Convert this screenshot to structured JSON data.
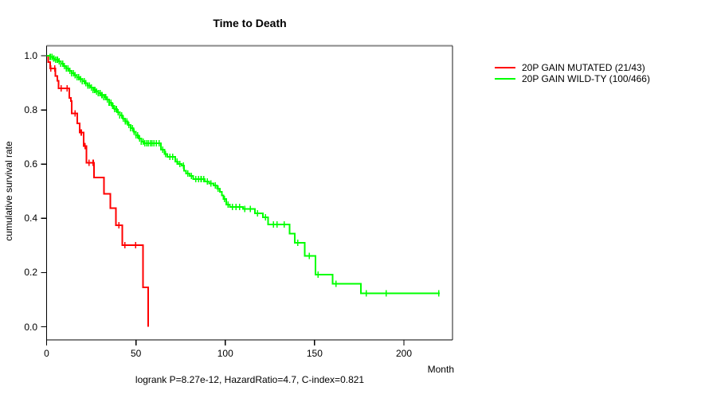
{
  "chart_data": {
    "type": "line",
    "subtype": "kaplan_meier_step",
    "title": "Time to Death",
    "xlabel": "Month",
    "ylabel": "cumulative survival rate",
    "annotation": "logrank P=8.27e-12, HazardRatio=4.7, C-index=0.821",
    "xlim": [
      0,
      220
    ],
    "ylim": [
      0.0,
      1.0
    ],
    "x_ticks": [
      0,
      50,
      100,
      150,
      200
    ],
    "x_tick_labels": [
      "0",
      "50",
      "100",
      "150",
      "200"
    ],
    "y_ticks": [
      0.0,
      0.2,
      0.4,
      0.6,
      0.8,
      1.0
    ],
    "y_tick_labels": [
      "0.0",
      "0.2",
      "0.4",
      "0.6",
      "0.8",
      "1.0"
    ],
    "grid": false,
    "legend_position": "right-outside",
    "series": [
      {
        "id": "mutated",
        "name": "20P GAIN MUTATED (21/43)",
        "color": "#ff0000",
        "start": [
          0,
          1.0
        ],
        "end_t": 56.8,
        "steps": [
          [
            1,
            0.977
          ],
          [
            2,
            0.953
          ],
          [
            5,
            0.925
          ],
          [
            6,
            0.907
          ],
          [
            6.7,
            0.879
          ],
          [
            12.7,
            0.845
          ],
          [
            13.5,
            0.833
          ],
          [
            14.1,
            0.787
          ],
          [
            17.1,
            0.75
          ],
          [
            18.6,
            0.717
          ],
          [
            20.8,
            0.667
          ],
          [
            22.2,
            0.605
          ],
          [
            26.6,
            0.55
          ],
          [
            32,
            0.49
          ],
          [
            35.6,
            0.437
          ],
          [
            38.8,
            0.374
          ],
          [
            42.3,
            0.301
          ],
          [
            53.9,
            0.145
          ],
          [
            56.8,
            0.0
          ]
        ],
        "censor_times": [
          2.3,
          4.5,
          8.2,
          11.5,
          16,
          19.4,
          21.6,
          23.8,
          26.1,
          40.5,
          43.8,
          49.8
        ]
      },
      {
        "id": "wildtype",
        "name": "20P GAIN WILD-TY (100/466)",
        "color": "#00ff00",
        "start": [
          0,
          1.0
        ],
        "end_t": 220,
        "steps": [
          [
            2,
            0.995
          ],
          [
            3.5,
            0.99
          ],
          [
            5,
            0.985
          ],
          [
            6.5,
            0.979
          ],
          [
            8,
            0.971
          ],
          [
            9.5,
            0.962
          ],
          [
            11,
            0.953
          ],
          [
            12.5,
            0.944
          ],
          [
            14,
            0.935
          ],
          [
            15.5,
            0.928
          ],
          [
            17,
            0.92
          ],
          [
            18.5,
            0.913
          ],
          [
            20,
            0.906
          ],
          [
            21.5,
            0.898
          ],
          [
            23,
            0.89
          ],
          [
            24.5,
            0.882
          ],
          [
            26,
            0.874
          ],
          [
            27.5,
            0.868
          ],
          [
            29,
            0.862
          ],
          [
            30.5,
            0.855
          ],
          [
            32,
            0.847
          ],
          [
            33.5,
            0.838
          ],
          [
            35,
            0.826
          ],
          [
            36.5,
            0.815
          ],
          [
            38,
            0.803
          ],
          [
            39.5,
            0.792
          ],
          [
            41,
            0.78
          ],
          [
            42.5,
            0.768
          ],
          [
            44,
            0.757
          ],
          [
            45.5,
            0.745
          ],
          [
            47,
            0.733
          ],
          [
            48.5,
            0.72
          ],
          [
            50,
            0.706
          ],
          [
            51.5,
            0.694
          ],
          [
            53,
            0.683
          ],
          [
            54.5,
            0.677
          ],
          [
            64,
            0.653
          ],
          [
            66,
            0.637
          ],
          [
            67.5,
            0.627
          ],
          [
            72,
            0.609
          ],
          [
            73.5,
            0.601
          ],
          [
            75.5,
            0.594
          ],
          [
            77,
            0.575
          ],
          [
            78,
            0.565
          ],
          [
            80,
            0.557
          ],
          [
            82,
            0.545
          ],
          [
            88.5,
            0.536
          ],
          [
            91,
            0.528
          ],
          [
            93.5,
            0.521
          ],
          [
            95.5,
            0.51
          ],
          [
            97,
            0.498
          ],
          [
            98,
            0.485
          ],
          [
            99,
            0.471
          ],
          [
            100.5,
            0.451
          ],
          [
            102.5,
            0.442
          ],
          [
            110,
            0.435
          ],
          [
            116.5,
            0.418
          ],
          [
            121,
            0.404
          ],
          [
            124,
            0.377
          ],
          [
            136,
            0.344
          ],
          [
            139,
            0.31
          ],
          [
            144.5,
            0.261
          ],
          [
            150.5,
            0.192
          ],
          [
            160,
            0.158
          ],
          [
            176,
            0.124
          ]
        ],
        "censor_times": [
          2,
          3,
          4,
          5,
          6,
          7,
          8,
          9,
          10,
          11,
          12,
          13,
          14,
          15,
          16,
          17,
          18,
          19,
          20,
          21,
          22,
          23,
          24,
          25,
          26,
          27,
          28,
          29,
          30,
          31,
          32,
          33,
          34,
          35,
          36,
          37,
          38,
          39,
          40,
          41,
          42,
          43,
          44,
          45,
          46,
          47,
          48,
          49,
          50,
          51,
          52,
          53,
          54,
          55,
          56,
          57,
          58,
          59,
          60,
          61.5,
          63,
          65,
          66.5,
          69,
          70.5,
          73,
          74.5,
          76.5,
          79,
          81,
          83.5,
          85,
          86.5,
          88,
          90,
          92,
          94.5,
          96,
          99.5,
          101.5,
          104,
          106,
          108,
          111,
          114,
          118,
          122.5,
          127,
          129,
          133,
          140.5,
          147,
          152,
          162,
          179,
          190,
          219.5
        ]
      }
    ],
    "plot_box_color_top": "#8a8a8a",
    "plot_box_color": "#1a1a1a"
  }
}
